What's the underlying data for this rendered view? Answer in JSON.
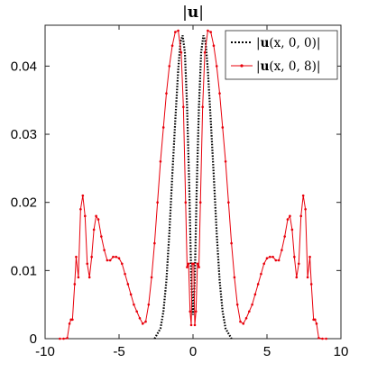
{
  "chart_data": {
    "type": "line",
    "title": "|u|",
    "title_bold_part": "u",
    "xlabel": "",
    "ylabel": "",
    "xlim": [
      -10,
      10
    ],
    "ylim": [
      0,
      0.046
    ],
    "xticks": [
      -10,
      -5,
      0,
      5,
      10
    ],
    "xtick_labels": [
      "-10",
      "-5",
      "0",
      "5",
      "10"
    ],
    "yticks": [
      0,
      0.01,
      0.02,
      0.03,
      0.04
    ],
    "ytick_labels": [
      "0",
      "0.01",
      "0.02",
      "0.03",
      "0.04"
    ],
    "grid": false,
    "legend_position": "top-right",
    "series": [
      {
        "name": "|u(x,0,0)|",
        "legend_parts": [
          "|",
          "u",
          "(x, 0, 0)|"
        ],
        "color": "#000000",
        "style": "dotted",
        "x": [
          -2.6,
          -2.2,
          -2.0,
          -1.8,
          -1.6,
          -1.4,
          -1.2,
          -1.0,
          -0.85,
          -0.7,
          -0.55,
          -0.4,
          -0.25,
          -0.12,
          0.0,
          0.12,
          0.25,
          0.4,
          0.55,
          0.7,
          0.85,
          1.0,
          1.2,
          1.4,
          1.6,
          1.8,
          2.0,
          2.2,
          2.6
        ],
        "y": [
          0.0,
          0.0015,
          0.004,
          0.0085,
          0.0155,
          0.024,
          0.032,
          0.0395,
          0.0435,
          0.0445,
          0.042,
          0.034,
          0.022,
          0.009,
          0.0035,
          0.009,
          0.022,
          0.034,
          0.042,
          0.0445,
          0.0435,
          0.0395,
          0.032,
          0.024,
          0.0155,
          0.0085,
          0.004,
          0.0015,
          0.0
        ]
      },
      {
        "name": "|u(x,0,8)|",
        "legend_parts": [
          "|",
          "u",
          "(x, 0, 8)|"
        ],
        "color": "#e8000b",
        "style": "solid-with-point-markers",
        "x": [
          -9.0,
          -8.75,
          -8.5,
          -8.35,
          -8.25,
          -8.15,
          -8.0,
          -7.9,
          -7.75,
          -7.6,
          -7.45,
          -7.3,
          -7.15,
          -7.0,
          -6.85,
          -6.7,
          -6.55,
          -6.4,
          -6.2,
          -6.0,
          -5.8,
          -5.6,
          -5.4,
          -5.2,
          -5.0,
          -4.8,
          -4.6,
          -4.4,
          -4.2,
          -4.0,
          -3.8,
          -3.6,
          -3.4,
          -3.2,
          -3.0,
          -2.8,
          -2.6,
          -2.4,
          -2.2,
          -2.0,
          -1.8,
          -1.6,
          -1.4,
          -1.2,
          -1.0,
          -0.8,
          -0.65,
          -0.5,
          -0.4,
          -0.3,
          -0.2,
          -0.12,
          -0.05,
          0.05,
          0.12,
          0.2,
          0.3,
          0.4,
          0.5,
          0.65,
          0.8,
          1.0,
          1.2,
          1.4,
          1.6,
          1.8,
          2.0,
          2.2,
          2.4,
          2.6,
          2.8,
          3.0,
          3.2,
          3.4,
          3.6,
          3.8,
          4.0,
          4.2,
          4.4,
          4.6,
          4.8,
          5.0,
          5.2,
          5.4,
          5.6,
          5.8,
          6.0,
          6.2,
          6.4,
          6.55,
          6.7,
          6.85,
          7.0,
          7.15,
          7.3,
          7.45,
          7.6,
          7.75,
          7.9,
          8.0,
          8.15,
          8.25,
          8.35,
          8.5,
          8.75,
          9.0
        ],
        "y": [
          0.0,
          0.0,
          0.0001,
          0.0022,
          0.0028,
          0.0028,
          0.008,
          0.012,
          0.009,
          0.019,
          0.021,
          0.018,
          0.011,
          0.009,
          0.012,
          0.016,
          0.018,
          0.0175,
          0.015,
          0.013,
          0.0115,
          0.0115,
          0.012,
          0.012,
          0.0118,
          0.011,
          0.0095,
          0.008,
          0.0065,
          0.005,
          0.004,
          0.003,
          0.0022,
          0.0025,
          0.005,
          0.009,
          0.014,
          0.02,
          0.026,
          0.031,
          0.036,
          0.04,
          0.043,
          0.045,
          0.0452,
          0.042,
          0.034,
          0.02,
          0.0105,
          0.011,
          0.004,
          0.002,
          0.011,
          0.011,
          0.002,
          0.004,
          0.011,
          0.0105,
          0.02,
          0.034,
          0.042,
          0.0452,
          0.045,
          0.043,
          0.04,
          0.036,
          0.031,
          0.026,
          0.02,
          0.014,
          0.009,
          0.005,
          0.0025,
          0.0022,
          0.003,
          0.004,
          0.005,
          0.0065,
          0.008,
          0.0095,
          0.011,
          0.0118,
          0.012,
          0.012,
          0.0115,
          0.0115,
          0.013,
          0.015,
          0.0175,
          0.018,
          0.016,
          0.012,
          0.009,
          0.011,
          0.018,
          0.021,
          0.019,
          0.009,
          0.012,
          0.008,
          0.0028,
          0.0028,
          0.0022,
          0.0001,
          0.0,
          0.0
        ]
      }
    ]
  }
}
